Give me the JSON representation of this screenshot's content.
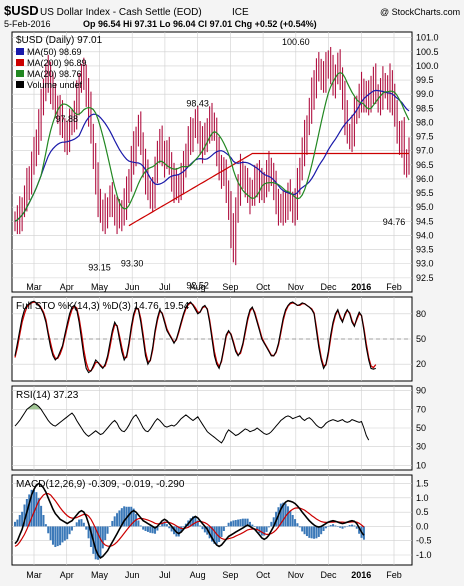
{
  "header": {
    "symbol": "$USD",
    "name": "US Dollar Index - Cash Settle (EOD)",
    "exchange": "ICE",
    "copyright": "@ StockCharts.com",
    "date": "5-Feb-2016",
    "quote": "Op 96.54 Hi 97.31 Lo 96.04 Cl 97.01 Chg +0.52 (+0.54%)"
  },
  "colors": {
    "price": "#b01040",
    "ma50": "#1a1aaa",
    "ma200": "#cc0000",
    "ma20": "#228822",
    "sto_k": "#000000",
    "sto_d": "#cc0000",
    "rsi": "#000000",
    "macd": "#000000",
    "signal": "#cc0000",
    "hist": "#3a78b8",
    "grid": "#cfcfcf",
    "axis": "#000000"
  },
  "chart_data": [
    {
      "type": "line",
      "panel": "price",
      "title": "$USD (Daily) 97.01",
      "y_ticks": [
        "101.0",
        "100.5",
        "100.0",
        "99.5",
        "99.0",
        "98.5",
        "98.0",
        "97.5",
        "97.0",
        "96.5",
        "96.0",
        "95.5",
        "95.0",
        "94.5",
        "94.0",
        "93.5",
        "93.0",
        "92.5"
      ],
      "x_labels": [
        "Mar",
        "Apr",
        "May",
        "Jun",
        "Jul",
        "Aug",
        "Sep",
        "Oct",
        "Nov",
        "Dec",
        "2016",
        "Feb"
      ],
      "legend": [
        {
          "label": "MA(50) 98.69",
          "color": "ma50"
        },
        {
          "label": "MA(200) 96.89",
          "color": "ma200"
        },
        {
          "label": "MA(20) 98.76",
          "color": "ma20"
        },
        {
          "label": "Volume undef",
          "color": "axis"
        }
      ],
      "annotations": [
        {
          "text": "94.76",
          "x": "Feb",
          "y": 94.76
        },
        {
          "text": "97.88",
          "x": "Apr",
          "y": 97.88
        },
        {
          "text": "93.15",
          "x": "May",
          "y": 93.15
        },
        {
          "text": "93.30",
          "x": "Jun",
          "y": 93.3
        },
        {
          "text": "98.43",
          "x": "Aug",
          "y": 98.43
        },
        {
          "text": "92.52",
          "x": "Aug",
          "y": 92.52
        },
        {
          "text": "100.60",
          "x": "Nov",
          "y": 100.6
        }
      ],
      "close": [
        94.5,
        94.6,
        94.8,
        95.0,
        95.3,
        95.8,
        96.1,
        96.5,
        96.9,
        97.4,
        98.0,
        98.6,
        99.2,
        99.6,
        99.8,
        99.3,
        98.8,
        98.6,
        98.5,
        98.2,
        97.8,
        97.4,
        97.6,
        97.9,
        98.1,
        98.3,
        98.9,
        99.4,
        99.6,
        99.7,
        99.1,
        98.5,
        97.6,
        96.8,
        96.0,
        95.3,
        94.8,
        94.6,
        94.9,
        95.0,
        95.3,
        95.1,
        94.9,
        94.7,
        94.6,
        94.9,
        95.2,
        95.5,
        96.0,
        96.7,
        97.1,
        97.5,
        97.8,
        97.3,
        96.6,
        96.1,
        95.6,
        95.4,
        95.6,
        96.2,
        97.0,
        97.3,
        97.0,
        96.7,
        96.9,
        96.6,
        96.1,
        95.8,
        95.6,
        95.8,
        96.1,
        96.4,
        96.9,
        97.4,
        97.6,
        97.8,
        98.0,
        97.7,
        97.4,
        97.2,
        97.4,
        97.8,
        98.1,
        98.0,
        97.7,
        96.9,
        96.5,
        96.3,
        96.1,
        95.6,
        95.1,
        94.2,
        93.4,
        95.0,
        95.7,
        96.3,
        96.0,
        95.8,
        95.7,
        95.4,
        95.5,
        95.9,
        96.2,
        95.8,
        95.6,
        95.9,
        96.2,
        96.4,
        96.1,
        95.7,
        95.3,
        95.0,
        94.8,
        95.0,
        95.2,
        95.4,
        95.2,
        94.9,
        95.2,
        95.8,
        96.4,
        97.0,
        97.5,
        97.9,
        98.4,
        99.0,
        99.5,
        99.8,
        99.9,
        99.6,
        99.7,
        99.9,
        100.2,
        99.8,
        99.5,
        99.7,
        100.0,
        99.6,
        99.0,
        98.2,
        97.6,
        97.5,
        97.8,
        98.3,
        98.6,
        98.9,
        99.2,
        99.0,
        98.7,
        98.9,
        99.3,
        99.5,
        99.0,
        98.8,
        99.1,
        99.4,
        99.2,
        98.9,
        99.5,
        98.9,
        98.2,
        97.7,
        97.4,
        97.6,
        96.5,
        96.7,
        97.0
      ],
      "ylim": [
        92.0,
        101.2
      ]
    },
    {
      "type": "line",
      "panel": "stochastic",
      "title": "Full STO %K(14,3) %D(3) 14.76, 19.54",
      "y_ticks": [
        "80",
        "50",
        "20"
      ],
      "k": [
        30,
        45,
        60,
        75,
        85,
        90,
        92,
        94,
        95,
        93,
        90,
        86,
        80,
        70,
        55,
        40,
        30,
        25,
        28,
        35,
        42,
        55,
        68,
        80,
        88,
        90,
        85,
        70,
        50,
        30,
        15,
        10,
        12,
        18,
        25,
        22,
        18,
        15,
        20,
        30,
        45,
        60,
        70,
        65,
        50,
        35,
        25,
        30,
        45,
        65,
        80,
        88,
        85,
        70,
        50,
        30,
        20,
        25,
        40,
        60,
        75,
        85,
        80,
        70,
        60,
        55,
        50,
        45,
        50,
        60,
        70,
        80,
        88,
        92,
        94,
        90,
        85,
        80,
        82,
        88,
        90,
        85,
        70,
        50,
        30,
        20,
        15,
        25,
        40,
        55,
        60,
        55,
        45,
        35,
        30,
        35,
        45,
        60,
        75,
        85,
        88,
        80,
        70,
        60,
        50,
        45,
        40,
        35,
        30,
        30,
        35,
        45,
        60,
        75,
        85,
        90,
        93,
        94,
        92,
        90,
        91,
        93,
        92,
        90,
        88,
        85,
        80,
        60,
        40,
        25,
        15,
        20,
        35,
        55,
        70,
        80,
        85,
        75,
        70,
        80,
        85,
        80,
        70,
        65,
        75,
        82,
        78,
        60,
        40,
        25,
        15,
        14,
        15
      ],
      "d": [
        28,
        40,
        55,
        70,
        80,
        88,
        91,
        93,
        94,
        93,
        91,
        87,
        82,
        73,
        58,
        45,
        33,
        27,
        27,
        32,
        40,
        52,
        64,
        76,
        85,
        89,
        87,
        75,
        57,
        37,
        22,
        13,
        12,
        16,
        22,
        22,
        19,
        16,
        18,
        27,
        40,
        56,
        67,
        66,
        54,
        40,
        28,
        28,
        42,
        61,
        77,
        86,
        86,
        74,
        55,
        35,
        23,
        24,
        37,
        57,
        72,
        83,
        81,
        72,
        62,
        56,
        51,
        46,
        49,
        58,
        68,
        78,
        86,
        91,
        93,
        91,
        87,
        82,
        82,
        87,
        89,
        86,
        73,
        54,
        35,
        23,
        17,
        23,
        38,
        53,
        59,
        56,
        47,
        37,
        31,
        33,
        43,
        57,
        72,
        83,
        87,
        82,
        72,
        62,
        52,
        46,
        41,
        36,
        31,
        30,
        34,
        43,
        57,
        72,
        83,
        89,
        92,
        93,
        92,
        90,
        90,
        92,
        92,
        90,
        88,
        86,
        81,
        64,
        44,
        28,
        18,
        19,
        32,
        51,
        67,
        78,
        84,
        77,
        71,
        78,
        84,
        81,
        72,
        66,
        73,
        80,
        78,
        63,
        44,
        28,
        18,
        16,
        19.5
      ]
    },
    {
      "type": "line",
      "panel": "rsi",
      "title": "RSI(14) 37.23",
      "y_ticks": [
        "90",
        "70",
        "50",
        "30",
        "10"
      ],
      "values": [
        52,
        55,
        58,
        62,
        66,
        70,
        72,
        74,
        76,
        75,
        73,
        70,
        66,
        62,
        58,
        55,
        53,
        52,
        54,
        56,
        58,
        60,
        62,
        64,
        66,
        63,
        58,
        54,
        50,
        46,
        43,
        41,
        43,
        45,
        47,
        45,
        43,
        44,
        47,
        50,
        53,
        56,
        58,
        55,
        50,
        47,
        46,
        49,
        53,
        58,
        62,
        64,
        60,
        55,
        50,
        47,
        46,
        49,
        53,
        57,
        60,
        58,
        55,
        52,
        51,
        52,
        53,
        52,
        54,
        57,
        60,
        62,
        64,
        62,
        60,
        58,
        60,
        62,
        58,
        54,
        50,
        46,
        44,
        42,
        40,
        38,
        36,
        34,
        38,
        44,
        48,
        46,
        44,
        42,
        43,
        45,
        47,
        49,
        48,
        46,
        47,
        48,
        50,
        48,
        46,
        44,
        43,
        44,
        46,
        49,
        52,
        55,
        58,
        60,
        62,
        63,
        62,
        60,
        61,
        62,
        63,
        60,
        58,
        60,
        61,
        59,
        56,
        53,
        51,
        50,
        52,
        55,
        57,
        58,
        59,
        58,
        57,
        58,
        59,
        57,
        56,
        57,
        59,
        58,
        57,
        56,
        57,
        50,
        42,
        37
      ]
    },
    {
      "type": "line",
      "panel": "macd",
      "title": "MACD(12,26,9) -0.309, -0.019, -0.290",
      "y_ticks": [
        "1.5",
        "1.0",
        "0.5",
        "0.0",
        "-0.5",
        "-1.0"
      ],
      "macd": [
        -0.6,
        -0.5,
        -0.3,
        -0.1,
        0.2,
        0.5,
        0.8,
        1.1,
        1.3,
        1.45,
        1.5,
        1.45,
        1.35,
        1.2,
        1.0,
        0.8,
        0.6,
        0.45,
        0.35,
        0.25,
        0.2,
        0.15,
        0.1,
        0.15,
        0.2,
        0.3,
        0.4,
        0.5,
        0.55,
        0.5,
        0.35,
        0.1,
        -0.2,
        -0.5,
        -0.8,
        -1.0,
        -1.1,
        -1.05,
        -0.95,
        -0.85,
        -0.7,
        -0.55,
        -0.4,
        -0.25,
        -0.1,
        0.05,
        0.2,
        0.3,
        0.4,
        0.5,
        0.55,
        0.5,
        0.4,
        0.3,
        0.2,
        0.15,
        0.1,
        0.05,
        0.0,
        -0.05,
        0.0,
        0.1,
        0.2,
        0.25,
        0.2,
        0.1,
        0.0,
        -0.1,
        -0.2,
        -0.25,
        -0.2,
        -0.1,
        0.0,
        0.1,
        0.2,
        0.3,
        0.35,
        0.3,
        0.2,
        0.1,
        0.0,
        -0.1,
        -0.25,
        -0.4,
        -0.55,
        -0.65,
        -0.7,
        -0.65,
        -0.55,
        -0.45,
        -0.35,
        -0.3,
        -0.25,
        -0.2,
        -0.15,
        -0.1,
        -0.05,
        0.0,
        0.05,
        0.0,
        -0.05,
        -0.1,
        -0.2,
        -0.3,
        -0.4,
        -0.45,
        -0.4,
        -0.3,
        -0.15,
        0.0,
        0.2,
        0.4,
        0.6,
        0.75,
        0.85,
        0.9,
        0.88,
        0.85,
        0.8,
        0.72,
        0.62,
        0.5,
        0.4,
        0.3,
        0.2,
        0.12,
        0.05,
        0.0,
        -0.02,
        0.0,
        0.05,
        0.1,
        0.15,
        0.18,
        0.2,
        0.18,
        0.15,
        0.12,
        0.1,
        0.12,
        0.15,
        0.18,
        0.2,
        0.18,
        0.1,
        -0.05,
        -0.2,
        -0.31
      ],
      "signal": [
        -0.7,
        -0.65,
        -0.55,
        -0.42,
        -0.28,
        -0.1,
        0.1,
        0.3,
        0.5,
        0.7,
        0.88,
        1.0,
        1.1,
        1.15,
        1.15,
        1.1,
        1.0,
        0.9,
        0.78,
        0.66,
        0.55,
        0.46,
        0.38,
        0.32,
        0.29,
        0.29,
        0.31,
        0.35,
        0.39,
        0.42,
        0.42,
        0.36,
        0.25,
        0.1,
        -0.08,
        -0.27,
        -0.44,
        -0.57,
        -0.65,
        -0.69,
        -0.7,
        -0.67,
        -0.62,
        -0.54,
        -0.45,
        -0.35,
        -0.24,
        -0.13,
        -0.03,
        0.07,
        0.16,
        0.23,
        0.27,
        0.28,
        0.27,
        0.25,
        0.22,
        0.19,
        0.15,
        0.11,
        0.09,
        0.09,
        0.11,
        0.14,
        0.15,
        0.14,
        0.11,
        0.07,
        0.02,
        -0.03,
        -0.07,
        -0.08,
        -0.06,
        -0.03,
        0.02,
        0.08,
        0.13,
        0.17,
        0.18,
        0.16,
        0.13,
        0.08,
        0.01,
        -0.07,
        -0.17,
        -0.27,
        -0.36,
        -0.42,
        -0.45,
        -0.45,
        -0.43,
        -0.41,
        -0.38,
        -0.34,
        -0.3,
        -0.26,
        -0.22,
        -0.17,
        -0.12,
        -0.1,
        -0.09,
        -0.09,
        -0.11,
        -0.15,
        -0.2,
        -0.25,
        -0.28,
        -0.28,
        -0.25,
        -0.2,
        -0.12,
        -0.02,
        0.1,
        0.23,
        0.35,
        0.46,
        0.54,
        0.6,
        0.64,
        0.65,
        0.64,
        0.61,
        0.57,
        0.51,
        0.45,
        0.38,
        0.32,
        0.26,
        0.21,
        0.17,
        0.15,
        0.14,
        0.14,
        0.15,
        0.15,
        0.16,
        0.16,
        0.15,
        0.15,
        0.14,
        0.14,
        0.15,
        0.16,
        0.16,
        0.15,
        0.11,
        0.05,
        -0.02
      ]
    }
  ]
}
